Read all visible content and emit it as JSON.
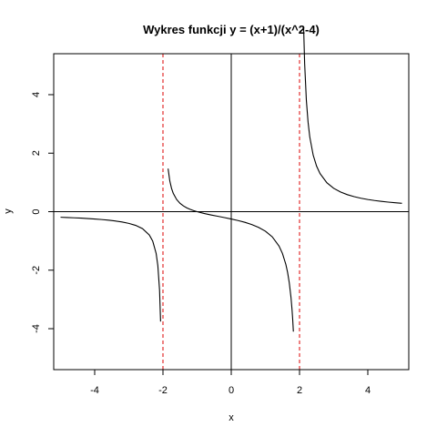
{
  "chart_data": {
    "type": "line",
    "title": "Wykres funkcji y = (x+1)/(x^2-4)",
    "xlabel": "x",
    "ylabel": "y",
    "xlim": [
      -5.2,
      5.2
    ],
    "ylim": [
      -5.4,
      5.4
    ],
    "x_ticks": [
      -4,
      -2,
      0,
      2,
      4
    ],
    "x_tick_labels": [
      "-4",
      "-2",
      "0",
      "2",
      "4"
    ],
    "y_ticks": [
      -4,
      -2,
      0,
      2,
      4
    ],
    "y_tick_labels": [
      "-4",
      "-2",
      "0",
      "2",
      "4"
    ],
    "grid": false,
    "series": [
      {
        "color": "#000000",
        "x": [
          -5.0,
          -4.8,
          -4.6,
          -4.4,
          -4.2,
          -4.0,
          -3.8,
          -3.6,
          -3.4,
          -3.2,
          -3.0,
          -2.8,
          -2.6,
          -2.4,
          -2.3,
          -2.2,
          -2.15,
          -2.1,
          -2.07
        ]
      },
      {
        "color": "#000000",
        "x": [
          -1.85,
          -1.8,
          -1.75,
          -1.7,
          -1.6,
          -1.5,
          -1.4,
          -1.3,
          -1.2,
          -1.1,
          -1.0,
          -0.8,
          -0.6,
          -0.4,
          -0.2,
          0.0,
          0.2,
          0.4,
          0.6,
          0.8,
          1.0,
          1.2,
          1.4,
          1.5,
          1.6,
          1.65,
          1.7,
          1.75,
          1.78,
          1.8,
          1.82
        ]
      },
      {
        "color": "#000000",
        "x": [
          2.12,
          2.15,
          2.2,
          2.25,
          2.3,
          2.4,
          2.5,
          2.6,
          2.8,
          3.0,
          3.2,
          3.4,
          3.6,
          3.8,
          4.0,
          4.2,
          4.4,
          4.6,
          4.8,
          5.0
        ]
      }
    ],
    "reference_lines": [
      {
        "orientation": "horizontal",
        "value": 0,
        "color": "#000000",
        "style": "solid"
      },
      {
        "orientation": "vertical",
        "value": 0,
        "color": "#000000",
        "style": "solid"
      },
      {
        "orientation": "vertical",
        "value": -2,
        "color": "#dd0000",
        "style": "dashed"
      },
      {
        "orientation": "vertical",
        "value": 2,
        "color": "#dd0000",
        "style": "dashed"
      }
    ]
  }
}
